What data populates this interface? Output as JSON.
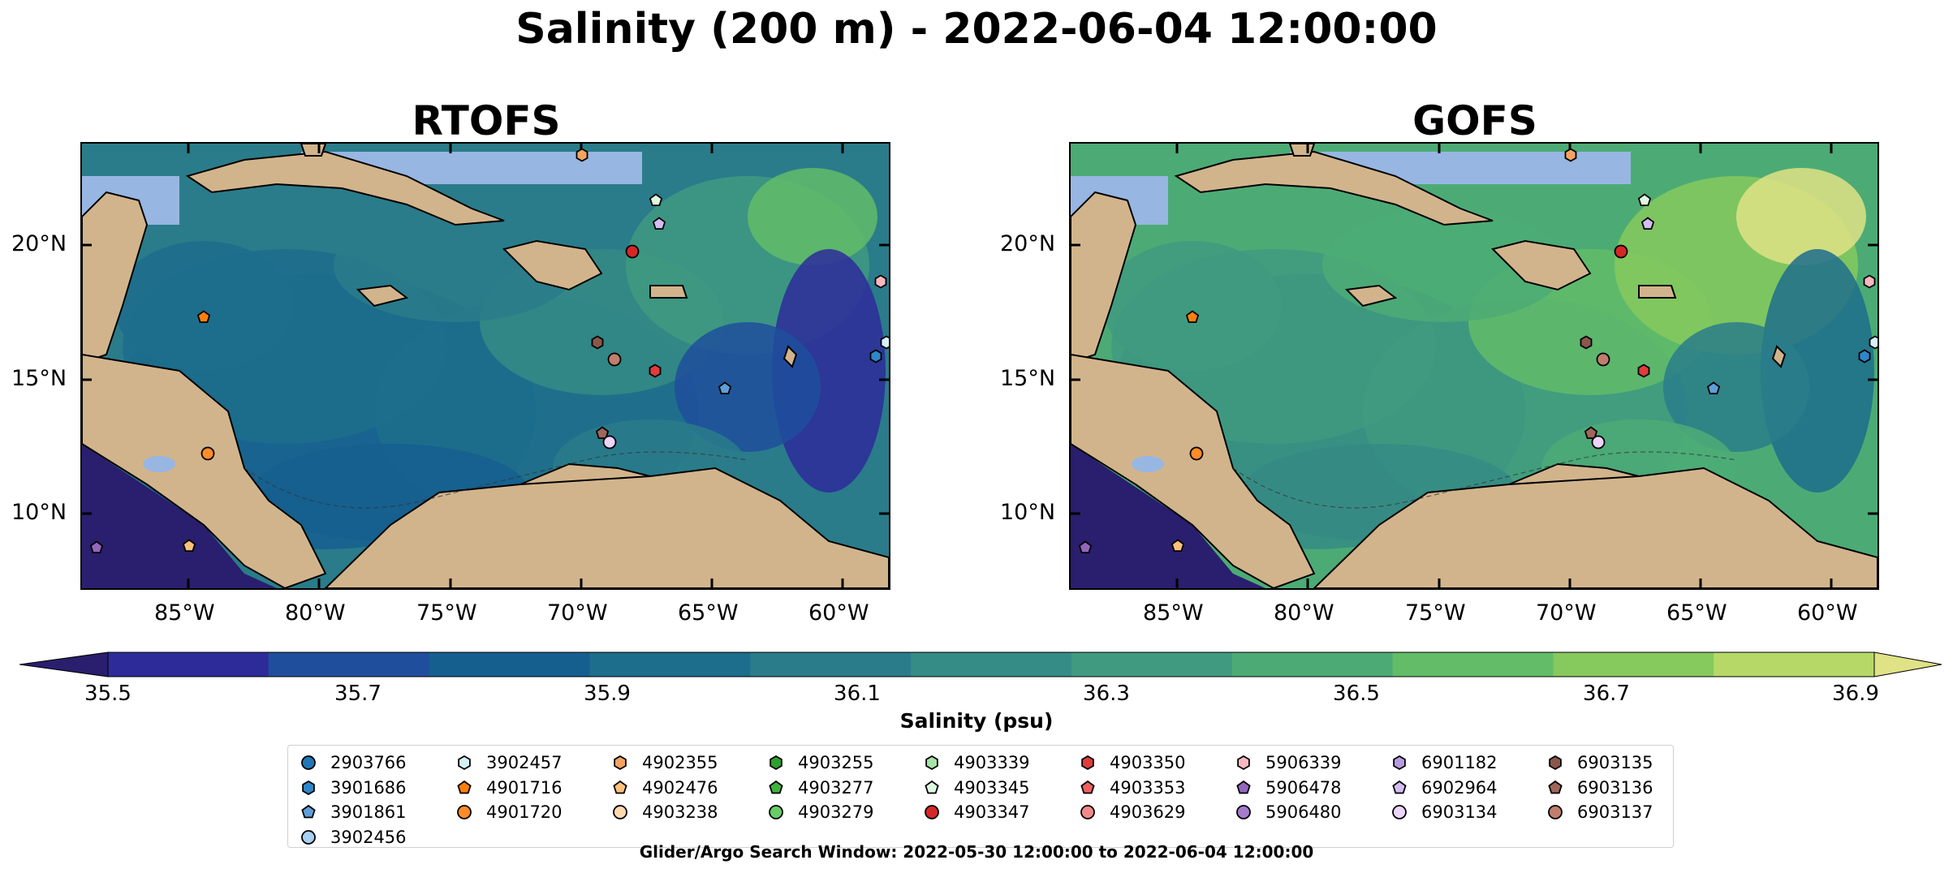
{
  "title": "Salinity (200 m) - 2022-06-04 12:00:00",
  "panels": [
    {
      "title": "RTOFS",
      "palette_bias": 0
    },
    {
      "title": "GOFS",
      "palette_bias": 1
    }
  ],
  "axes": {
    "x_ticks": [
      "85°W",
      "80°W",
      "75°W",
      "70°W",
      "65°W",
      "60°W"
    ],
    "y_ticks": [
      "20°N",
      "15°N",
      "10°N"
    ]
  },
  "colorbar": {
    "label": "Salinity (psu)",
    "ticks": [
      "35.5",
      "35.7",
      "35.9",
      "36.1",
      "36.3",
      "36.5",
      "36.7",
      "36.9"
    ],
    "colors": [
      "#2a1e6e",
      "#2d2b9a",
      "#1f4f9c",
      "#155f8f",
      "#1d6d8c",
      "#2a7c8a",
      "#358b85",
      "#3f9a80",
      "#4cab75",
      "#62bc68",
      "#86c95d",
      "#b5d867",
      "#dfe285"
    ]
  },
  "legend": {
    "columns": [
      [
        {
          "id": "2903766",
          "shape": "circle",
          "color": "#1f77b4"
        },
        {
          "id": "3901686",
          "shape": "hexagon",
          "color": "#2f86c8"
        },
        {
          "id": "3901861",
          "shape": "pentagon",
          "color": "#5f9fd8"
        },
        {
          "id": "3902456",
          "shape": "circle",
          "color": "#a8d0f0"
        }
      ],
      [
        {
          "id": "3902457",
          "shape": "hexagon",
          "color": "#d7f0f8"
        },
        {
          "id": "4901716",
          "shape": "pentagon",
          "color": "#ff7f0e"
        },
        {
          "id": "4901720",
          "shape": "circle",
          "color": "#ff8c28"
        }
      ],
      [
        {
          "id": "4902355",
          "shape": "hexagon",
          "color": "#f4a460"
        },
        {
          "id": "4902476",
          "shape": "pentagon",
          "color": "#ffc07a"
        },
        {
          "id": "4903238",
          "shape": "circle",
          "color": "#ffd8b0"
        }
      ],
      [
        {
          "id": "4903255",
          "shape": "hexagon",
          "color": "#2ca02c"
        },
        {
          "id": "4903277",
          "shape": "pentagon",
          "color": "#3cb43c"
        },
        {
          "id": "4903279",
          "shape": "circle",
          "color": "#66cc66"
        }
      ],
      [
        {
          "id": "4903339",
          "shape": "hexagon",
          "color": "#a6e3a6"
        },
        {
          "id": "4903345",
          "shape": "pentagon",
          "color": "#e0f8e0"
        },
        {
          "id": "4903347",
          "shape": "circle",
          "color": "#d62728"
        }
      ],
      [
        {
          "id": "4903350",
          "shape": "hexagon",
          "color": "#e03c3c"
        },
        {
          "id": "4903353",
          "shape": "pentagon",
          "color": "#f06060"
        },
        {
          "id": "4903629",
          "shape": "circle",
          "color": "#f08a8a"
        }
      ],
      [
        {
          "id": "5906339",
          "shape": "hexagon",
          "color": "#f8b8c0"
        },
        {
          "id": "5906478",
          "shape": "pentagon",
          "color": "#9467bd"
        },
        {
          "id": "5906480",
          "shape": "circle",
          "color": "#a57ccc"
        }
      ],
      [
        {
          "id": "6901182",
          "shape": "hexagon",
          "color": "#b89ae0"
        },
        {
          "id": "6902964",
          "shape": "pentagon",
          "color": "#d4bdf2"
        },
        {
          "id": "6903134",
          "shape": "circle",
          "color": "#ecd4fa"
        }
      ],
      [
        {
          "id": "6903135",
          "shape": "hexagon",
          "color": "#8c564b"
        },
        {
          "id": "6903136",
          "shape": "pentagon",
          "color": "#a0665a"
        },
        {
          "id": "6903137",
          "shape": "circle",
          "color": "#c07f6e"
        }
      ]
    ]
  },
  "footnote": "Glider/Argo Search Window: 2022-05-30 12:00:00 to 2022-06-04 12:00:00",
  "map_colors": {
    "ocean_shelf": "#97b6e2",
    "land": "#d2b48c",
    "deep": "#2a1e6e"
  }
}
